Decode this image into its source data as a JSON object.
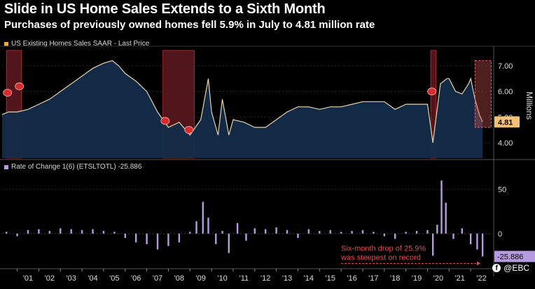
{
  "header": {
    "title": "Slide in US Home Sales Extends to a Sixth Month",
    "subtitle": "Purchases of previously owned homes fell 5.9% in July to 4.81 million rate"
  },
  "watermark": {
    "icon": "facebook-icon",
    "text": "@EBC"
  },
  "colors": {
    "line": "#e8d2a8",
    "area": "#142c4a",
    "recession": "#6e1c24",
    "roc_bar": "#b79be0",
    "price_tag": "#f2c078",
    "last_roc_tag": "#b79be0",
    "annotation": "#e04a4a"
  },
  "chart_data": [
    {
      "type": "area",
      "legend": "US Existing Homes Sales SAAR - Last Price",
      "ylabel": "Millions",
      "yticks": [
        "4.00",
        "5.00",
        "6.00",
        "7.00"
      ],
      "ylim": [
        3.4,
        7.6
      ],
      "last_value": 4.81,
      "last_value_label": "4.81",
      "xlim": [
        2000.3,
        2023.0
      ],
      "recession_periods": [
        [
          2000.5,
          2001.2
        ],
        [
          2007.75,
          2009.2
        ],
        [
          2020.15,
          2020.4
        ]
      ],
      "x": [
        2000.3,
        2000.6,
        2001.0,
        2001.5,
        2002.0,
        2002.5,
        2003.0,
        2003.5,
        2004.0,
        2004.5,
        2005.0,
        2005.4,
        2005.7,
        2006.0,
        2006.5,
        2007.0,
        2007.5,
        2008.0,
        2008.5,
        2009.0,
        2009.5,
        2009.85,
        2010.0,
        2010.3,
        2010.5,
        2010.8,
        2011.0,
        2011.5,
        2012.0,
        2012.5,
        2013.0,
        2013.5,
        2014.0,
        2014.5,
        2015.0,
        2015.5,
        2016.0,
        2016.5,
        2017.0,
        2017.5,
        2018.0,
        2018.5,
        2019.0,
        2019.5,
        2020.0,
        2020.25,
        2020.4,
        2020.6,
        2020.9,
        2021.0,
        2021.3,
        2021.6,
        2021.9,
        2022.0,
        2022.2,
        2022.4,
        2022.55
      ],
      "y": [
        5.1,
        5.2,
        5.2,
        5.3,
        5.5,
        5.7,
        6.0,
        6.3,
        6.6,
        6.9,
        7.1,
        7.2,
        7.0,
        6.7,
        6.4,
        6.0,
        5.2,
        4.6,
        4.8,
        4.3,
        4.9,
        6.5,
        5.2,
        4.3,
        5.7,
        4.3,
        4.9,
        4.8,
        4.6,
        4.6,
        4.9,
        5.2,
        5.4,
        5.4,
        5.3,
        5.4,
        5.4,
        5.5,
        5.6,
        5.6,
        5.6,
        5.3,
        5.5,
        5.5,
        5.5,
        4.0,
        5.0,
        6.3,
        6.5,
        6.5,
        6.0,
        5.9,
        6.3,
        6.5,
        5.7,
        5.1,
        4.81
      ]
    },
    {
      "type": "bar",
      "legend": "Rate of Change 1(6) (ETSLTOTL) -25.886",
      "yticks": [
        "-0",
        "0",
        "50"
      ],
      "ylim": [
        -35,
        68
      ],
      "last_value": -25.886,
      "last_value_label": "-25.886",
      "annotation": "Six-month drop of 25.9% was steepest on record",
      "x": [
        2000.5,
        2001.0,
        2001.5,
        2002.0,
        2002.5,
        2003.0,
        2003.5,
        2004.0,
        2004.5,
        2005.0,
        2005.5,
        2006.0,
        2006.5,
        2007.0,
        2007.5,
        2008.0,
        2008.5,
        2009.0,
        2009.3,
        2009.6,
        2009.85,
        2010.2,
        2010.5,
        2010.8,
        2011.2,
        2011.6,
        2012.0,
        2012.5,
        2013.0,
        2013.5,
        2014.0,
        2014.5,
        2015.0,
        2015.5,
        2016.0,
        2016.5,
        2017.0,
        2017.5,
        2018.0,
        2018.5,
        2019.0,
        2019.5,
        2020.0,
        2020.25,
        2020.45,
        2020.65,
        2020.85,
        2021.2,
        2021.6,
        2022.0,
        2022.3,
        2022.55
      ],
      "values": [
        2,
        -3,
        4,
        5,
        3,
        6,
        5,
        4,
        5,
        3,
        2,
        -5,
        -10,
        -12,
        -18,
        -14,
        -10,
        2,
        14,
        36,
        18,
        -12,
        3,
        -22,
        12,
        -8,
        6,
        5,
        7,
        4,
        -5,
        5,
        3,
        4,
        2,
        3,
        4,
        2,
        -3,
        -6,
        2,
        3,
        4,
        -25,
        10,
        60,
        35,
        -6,
        6,
        -12,
        -18,
        -25.886
      ],
      "xticks": [
        "'01",
        "'02",
        "'03",
        "'04",
        "'05",
        "'06",
        "'07",
        "'08",
        "'09",
        "'10",
        "'11",
        "'12",
        "'13",
        "'14",
        "'15",
        "'16",
        "'17",
        "'18",
        "'19",
        "'20",
        "'21",
        "'22"
      ]
    }
  ]
}
